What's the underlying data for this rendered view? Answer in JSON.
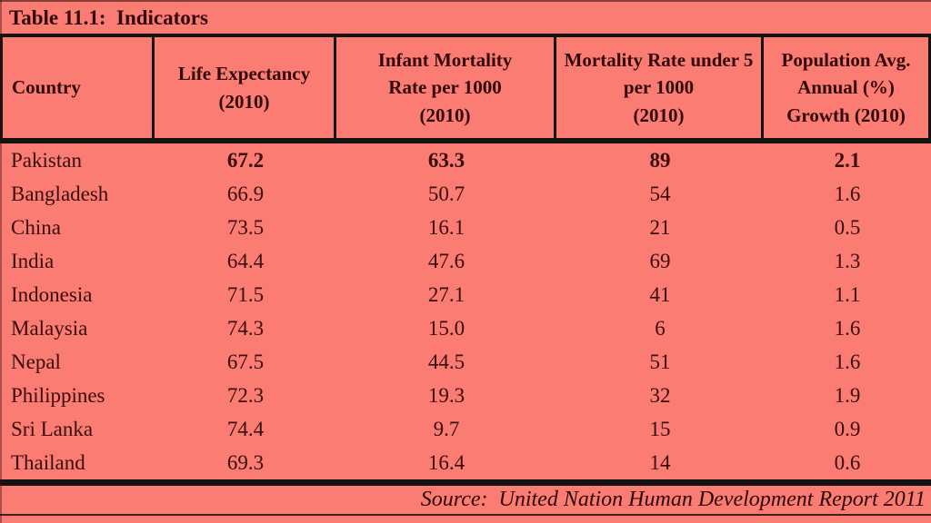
{
  "title": "Table 11.1:  Indicators",
  "table": {
    "columns": [
      "Country",
      "Life Expectancy\n(2010)",
      "Infant Mortality\nRate per 1000\n(2010)",
      "Mortality Rate under 5\nper 1000\n(2010)",
      "Population Avg.\nAnnual (%)\nGrowth (2010)"
    ],
    "rows": [
      {
        "country": "Pakistan",
        "life_expectancy": "67.2",
        "infant_mortality": "63.3",
        "under5_mortality": "89",
        "pop_growth": "2.1",
        "bold": true
      },
      {
        "country": "Bangladesh",
        "life_expectancy": "66.9",
        "infant_mortality": "50.7",
        "under5_mortality": "54",
        "pop_growth": "1.6",
        "bold": false
      },
      {
        "country": "China",
        "life_expectancy": "73.5",
        "infant_mortality": "16.1",
        "under5_mortality": "21",
        "pop_growth": "0.5",
        "bold": false
      },
      {
        "country": "India",
        "life_expectancy": "64.4",
        "infant_mortality": "47.6",
        "under5_mortality": "69",
        "pop_growth": "1.3",
        "bold": false
      },
      {
        "country": "Indonesia",
        "life_expectancy": "71.5",
        "infant_mortality": "27.1",
        "under5_mortality": "41",
        "pop_growth": "1.1",
        "bold": false
      },
      {
        "country": "Malaysia",
        "life_expectancy": "74.3",
        "infant_mortality": "15.0",
        "under5_mortality": "6",
        "pop_growth": "1.6",
        "bold": false
      },
      {
        "country": "Nepal",
        "life_expectancy": "67.5",
        "infant_mortality": "44.5",
        "under5_mortality": "51",
        "pop_growth": "1.6",
        "bold": false
      },
      {
        "country": "Philippines",
        "life_expectancy": "72.3",
        "infant_mortality": "19.3",
        "under5_mortality": "32",
        "pop_growth": "1.9",
        "bold": false
      },
      {
        "country": "Sri Lanka",
        "life_expectancy": "74.4",
        "infant_mortality": "9.7",
        "under5_mortality": "15",
        "pop_growth": "0.9",
        "bold": false
      },
      {
        "country": "Thailand",
        "life_expectancy": "69.3",
        "infant_mortality": "16.4",
        "under5_mortality": "14",
        "pop_growth": "0.6",
        "bold": false
      }
    ]
  },
  "source": "Source:  United Nation Human Development Report 2011",
  "colors": {
    "background": "#FA7C72",
    "text": "#3A0B0B",
    "heading_text": "#310707",
    "line": "#131313"
  }
}
